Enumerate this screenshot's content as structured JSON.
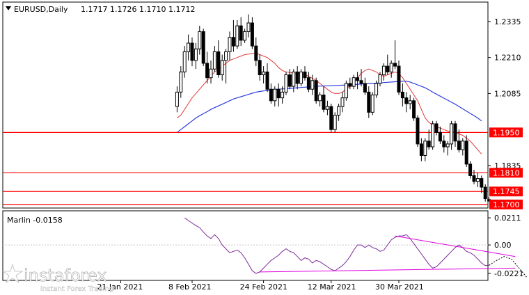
{
  "header": {
    "symbol": "EURUSD,Daily",
    "ohlc": "1.1717 1.1726 1.1710 1.1712"
  },
  "watermark": {
    "brand": "instaforex",
    "tagline": "Instant Forex Trading"
  },
  "chart_data": [
    {
      "type": "candlestick",
      "ylim": [
        1.169,
        1.24
      ],
      "price_ticks": [
        "1.2335",
        "1.2210",
        "1.2085",
        "1.1835"
      ],
      "x_ticks": [
        "21 Jan 2021",
        "8 Feb 2021",
        "24 Feb 2021",
        "12 Mar 2021",
        "30 Mar 2021"
      ],
      "x_tick_index": [
        31,
        50,
        69,
        87,
        105
      ],
      "levels": [
        {
          "label": "1.1950",
          "value": 1.195,
          "color": "#ff0000"
        },
        {
          "label": "1.1810",
          "value": 1.181,
          "color": "#ff0000"
        },
        {
          "label": "1.1745",
          "value": 1.1745,
          "color": "#ff0000"
        },
        {
          "label": "1.1700",
          "value": 1.17,
          "color": "#ff0000"
        }
      ],
      "candles": [
        [
          1.204,
          1.211,
          1.202,
          1.209
        ],
        [
          1.209,
          1.218,
          1.207,
          1.216
        ],
        [
          1.216,
          1.225,
          1.214,
          1.223
        ],
        [
          1.223,
          1.229,
          1.22,
          1.226
        ],
        [
          1.226,
          1.228,
          1.218,
          1.22
        ],
        [
          1.22,
          1.226,
          1.217,
          1.224
        ],
        [
          1.224,
          1.232,
          1.222,
          1.23
        ],
        [
          1.23,
          1.231,
          1.218,
          1.219
        ],
        [
          1.219,
          1.223,
          1.212,
          1.214
        ],
        [
          1.214,
          1.22,
          1.212,
          1.217
        ],
        [
          1.217,
          1.225,
          1.216,
          1.223
        ],
        [
          1.223,
          1.227,
          1.214,
          1.215
        ],
        [
          1.215,
          1.222,
          1.213,
          1.22
        ],
        [
          1.22,
          1.224,
          1.212,
          1.223
        ],
        [
          1.223,
          1.23,
          1.22,
          1.228
        ],
        [
          1.228,
          1.234,
          1.223,
          1.225
        ],
        [
          1.225,
          1.234,
          1.224,
          1.232
        ],
        [
          1.232,
          1.235,
          1.225,
          1.227
        ],
        [
          1.227,
          1.231,
          1.226,
          1.23
        ],
        [
          1.23,
          1.236,
          1.228,
          1.233
        ],
        [
          1.233,
          1.235,
          1.224,
          1.225
        ],
        [
          1.225,
          1.228,
          1.218,
          1.22
        ],
        [
          1.22,
          1.222,
          1.213,
          1.215
        ],
        [
          1.215,
          1.218,
          1.212,
          1.216
        ],
        [
          1.216,
          1.219,
          1.209,
          1.21
        ],
        [
          1.21,
          1.212,
          1.205,
          1.206
        ],
        [
          1.206,
          1.211,
          1.204,
          1.21
        ],
        [
          1.21,
          1.212,
          1.204,
          1.207
        ],
        [
          1.207,
          1.211,
          1.205,
          1.209
        ],
        [
          1.209,
          1.216,
          1.208,
          1.215
        ],
        [
          1.215,
          1.217,
          1.21,
          1.211
        ],
        [
          1.211,
          1.217,
          1.209,
          1.216
        ],
        [
          1.216,
          1.218,
          1.21,
          1.212
        ],
        [
          1.212,
          1.217,
          1.211,
          1.216
        ],
        [
          1.216,
          1.218,
          1.213,
          1.214
        ],
        [
          1.214,
          1.216,
          1.209,
          1.21
        ],
        [
          1.21,
          1.215,
          1.208,
          1.213
        ],
        [
          1.213,
          1.214,
          1.205,
          1.206
        ],
        [
          1.206,
          1.209,
          1.204,
          1.208
        ],
        [
          1.208,
          1.211,
          1.202,
          1.203
        ],
        [
          1.203,
          1.206,
          1.201,
          1.204
        ],
        [
          1.204,
          1.205,
          1.195,
          1.196
        ],
        [
          1.196,
          1.202,
          1.195,
          1.201
        ],
        [
          1.201,
          1.205,
          1.199,
          1.204
        ],
        [
          1.204,
          1.209,
          1.202,
          1.207
        ],
        [
          1.207,
          1.213,
          1.206,
          1.212
        ],
        [
          1.212,
          1.214,
          1.21,
          1.211
        ],
        [
          1.211,
          1.215,
          1.21,
          1.214
        ],
        [
          1.214,
          1.216,
          1.21,
          1.213
        ],
        [
          1.213,
          1.217,
          1.211,
          1.212
        ],
        [
          1.212,
          1.214,
          1.208,
          1.209
        ],
        [
          1.209,
          1.211,
          1.2,
          1.202
        ],
        [
          1.202,
          1.209,
          1.201,
          1.208
        ],
        [
          1.208,
          1.213,
          1.207,
          1.212
        ],
        [
          1.212,
          1.216,
          1.211,
          1.215
        ],
        [
          1.215,
          1.219,
          1.213,
          1.218
        ],
        [
          1.218,
          1.222,
          1.215,
          1.216
        ],
        [
          1.216,
          1.22,
          1.214,
          1.219
        ],
        [
          1.219,
          1.227,
          1.217,
          1.218
        ],
        [
          1.218,
          1.22,
          1.208,
          1.209
        ],
        [
          1.209,
          1.212,
          1.204,
          1.207
        ],
        [
          1.207,
          1.209,
          1.202,
          1.205
        ],
        [
          1.205,
          1.208,
          1.203,
          1.206
        ],
        [
          1.206,
          1.207,
          1.199,
          1.2
        ],
        [
          1.2,
          1.201,
          1.19,
          1.191
        ],
        [
          1.191,
          1.193,
          1.185,
          1.187
        ],
        [
          1.187,
          1.193,
          1.185,
          1.192
        ],
        [
          1.192,
          1.196,
          1.189,
          1.19
        ],
        [
          1.19,
          1.199,
          1.189,
          1.198
        ],
        [
          1.198,
          1.199,
          1.194,
          1.195
        ],
        [
          1.195,
          1.197,
          1.191,
          1.192
        ],
        [
          1.192,
          1.194,
          1.188,
          1.19
        ],
        [
          1.19,
          1.192,
          1.187,
          1.191
        ],
        [
          1.191,
          1.199,
          1.189,
          1.198
        ],
        [
          1.198,
          1.199,
          1.19,
          1.192
        ],
        [
          1.192,
          1.196,
          1.188,
          1.189
        ],
        [
          1.189,
          1.193,
          1.187,
          1.192
        ],
        [
          1.192,
          1.194,
          1.183,
          1.184
        ],
        [
          1.184,
          1.185,
          1.179,
          1.18
        ],
        [
          1.18,
          1.182,
          1.177,
          1.178
        ],
        [
          1.178,
          1.181,
          1.176,
          1.179
        ],
        [
          1.179,
          1.18,
          1.174,
          1.176
        ],
        [
          1.176,
          1.177,
          1.171,
          1.172
        ],
        [
          1.1717,
          1.1726,
          1.171,
          1.1712
        ]
      ],
      "ma_red": [
        1.2,
        1.201,
        1.203,
        1.205,
        1.207,
        1.2085,
        1.21,
        1.2115,
        1.213,
        1.2145,
        1.216,
        1.217,
        1.218,
        1.219,
        1.22,
        1.2205,
        1.221,
        1.2215,
        1.222,
        1.2222,
        1.2224,
        1.2225,
        1.222,
        1.2215,
        1.221,
        1.22,
        1.219,
        1.2175,
        1.2165,
        1.216,
        1.2158,
        1.2156,
        1.2155,
        1.2154,
        1.215,
        1.2145,
        1.2138,
        1.213,
        1.212,
        1.211,
        1.21,
        1.209,
        1.2085,
        1.2085,
        1.209,
        1.21,
        1.211,
        1.2125,
        1.214,
        1.2155,
        1.2165,
        1.217,
        1.2165,
        1.216,
        1.215,
        1.2145,
        1.215,
        1.2155,
        1.216,
        1.2155,
        1.214,
        1.212,
        1.21,
        1.208,
        1.206,
        1.203,
        1.2,
        1.1985,
        1.1975,
        1.197,
        1.1965,
        1.196,
        1.1955,
        1.1952,
        1.195,
        1.1945,
        1.194,
        1.193,
        1.192,
        1.1905,
        1.189,
        1.1875
      ],
      "ma_blue": [
        1.195,
        1.196,
        1.197,
        1.198,
        1.199,
        1.2,
        1.2008,
        1.2015,
        1.2022,
        1.203,
        1.2036,
        1.2042,
        1.2048,
        1.2054,
        1.206,
        1.2066,
        1.207,
        1.2074,
        1.2078,
        1.2082,
        1.2086,
        1.209,
        1.2092,
        1.2094,
        1.2096,
        1.2098,
        1.2099,
        1.21,
        1.2101,
        1.2102,
        1.2103,
        1.2104,
        1.2105,
        1.2106,
        1.2107,
        1.2108,
        1.2109,
        1.211,
        1.2111,
        1.2111,
        1.2112,
        1.2112,
        1.2113,
        1.2113,
        1.2114,
        1.2114,
        1.2115,
        1.2116,
        1.2117,
        1.2118,
        1.2119,
        1.212,
        1.212,
        1.2121,
        1.2122,
        1.2123,
        1.2124,
        1.2125,
        1.2126,
        1.2127,
        1.2128,
        1.2128,
        1.2125,
        1.212,
        1.2115,
        1.211,
        1.2105,
        1.2098,
        1.209,
        1.2083,
        1.2076,
        1.2069,
        1.2062,
        1.2055,
        1.2048,
        1.204,
        1.2032,
        1.2024,
        1.2016,
        1.2008,
        1.2,
        1.199
      ]
    },
    {
      "type": "line",
      "title": "Marlin -0.0158",
      "ylim": [
        -0.027,
        0.026
      ],
      "y_ticks": [
        "0.0211",
        "0.00",
        "-0.0221"
      ],
      "values": [
        0.021,
        0.019,
        0.017,
        0.015,
        0.0135,
        0.01,
        0.007,
        0.005,
        0.008,
        0.005,
        0.0,
        -0.003,
        -0.006,
        -0.005,
        -0.004,
        -0.006,
        -0.01,
        -0.015,
        -0.02,
        -0.0221,
        -0.021,
        -0.018,
        -0.015,
        -0.012,
        -0.01,
        -0.008,
        -0.005,
        -0.003,
        -0.005,
        -0.006,
        -0.009,
        -0.012,
        -0.01,
        -0.011,
        -0.014,
        -0.012,
        -0.013,
        -0.015,
        -0.017,
        -0.019,
        -0.02,
        -0.018,
        -0.016,
        -0.013,
        -0.009,
        -0.004,
        0.0,
        0.0,
        -0.002,
        0.0,
        -0.002,
        -0.003,
        -0.005,
        -0.004,
        0.0,
        0.004,
        0.006,
        0.007,
        0.007,
        0.008,
        0.005,
        0.001,
        -0.003,
        -0.007,
        -0.011,
        -0.015,
        -0.018,
        -0.017,
        -0.014,
        -0.011,
        -0.008,
        -0.005,
        -0.002,
        0.0,
        -0.002,
        -0.005,
        -0.006,
        -0.008,
        -0.011,
        -0.014,
        -0.016,
        -0.0158
      ],
      "dotted_projection": [
        -0.0158,
        -0.012,
        -0.009,
        -0.011,
        -0.018,
        -0.025
      ],
      "trendlines": [
        {
          "from": [
            56,
            0.007
          ],
          "to": [
            88,
            -0.009
          ],
          "color": "#e000e0"
        },
        {
          "from": [
            20,
            -0.021
          ],
          "to": [
            88,
            -0.018
          ],
          "color": "#e000e0"
        }
      ]
    }
  ]
}
